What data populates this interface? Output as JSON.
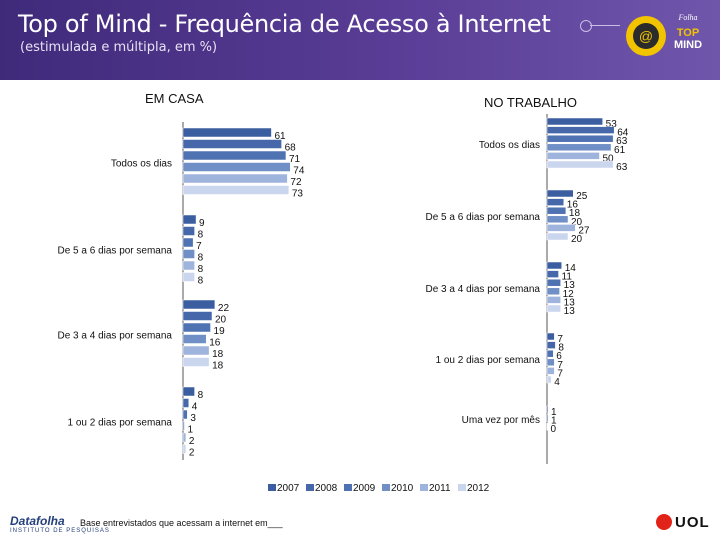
{
  "header": {
    "title": "Top of Mind - Frequência de Acesso à Internet",
    "subtitle": "(estimulada e múltipla, em %)",
    "logo_top": "Folha",
    "logo_main_1": "TOP",
    "logo_main_2": "MIND",
    "colors": {
      "band": "#4b3187"
    }
  },
  "footer": {
    "datafolha": "Datafolha",
    "datafolha_sub": "INSTITUTO DE PESQUISAS",
    "note": "Base entrevistados que acessam a internet em___",
    "uol": "UOL"
  },
  "chart_data": [
    {
      "type": "bar",
      "orientation": "horizontal",
      "title": "EM CASA",
      "categories": [
        "Todos os dias",
        "De 5 a 6 dias por semana",
        "De 3 a 4 dias por semana",
        "1 ou 2 dias por semana"
      ],
      "series": [
        {
          "name": "2007",
          "values": [
            61,
            9,
            22,
            8
          ]
        },
        {
          "name": "2008",
          "values": [
            68,
            8,
            20,
            4
          ]
        },
        {
          "name": "2009",
          "values": [
            71,
            7,
            19,
            3
          ]
        },
        {
          "name": "2010",
          "values": [
            74,
            8,
            16,
            1
          ]
        },
        {
          "name": "2011",
          "values": [
            72,
            8,
            18,
            2
          ]
        },
        {
          "name": "2012",
          "values": [
            73,
            8,
            18,
            2
          ]
        }
      ]
    },
    {
      "type": "bar",
      "orientation": "horizontal",
      "title": "NO TRABALHO",
      "categories": [
        "Todos os dias",
        "De 5 a 6 dias por semana",
        "De 3 a 4 dias por semana",
        "1 ou 2 dias por semana",
        "Uma vez por mês"
      ],
      "series": [
        {
          "name": "2007",
          "values": [
            53,
            25,
            14,
            7,
            1
          ]
        },
        {
          "name": "2008",
          "values": [
            64,
            16,
            11,
            8,
            1
          ]
        },
        {
          "name": "2009",
          "values": [
            63,
            18,
            13,
            6,
            0
          ]
        },
        {
          "name": "2010",
          "values": [
            61,
            20,
            12,
            7,
            null
          ]
        },
        {
          "name": "2011",
          "values": [
            50,
            27,
            13,
            7,
            null
          ]
        },
        {
          "name": "2012",
          "values": [
            63,
            20,
            13,
            4,
            null
          ]
        }
      ]
    }
  ],
  "legend": {
    "entries": [
      "2007",
      "2008",
      "2009",
      "2010",
      "2011",
      "2012"
    ],
    "colors": [
      "#3b5ea0",
      "#4668aa",
      "#4f72b3",
      "#6f8fc6",
      "#9fb4dc",
      "#c9d6ee"
    ]
  }
}
